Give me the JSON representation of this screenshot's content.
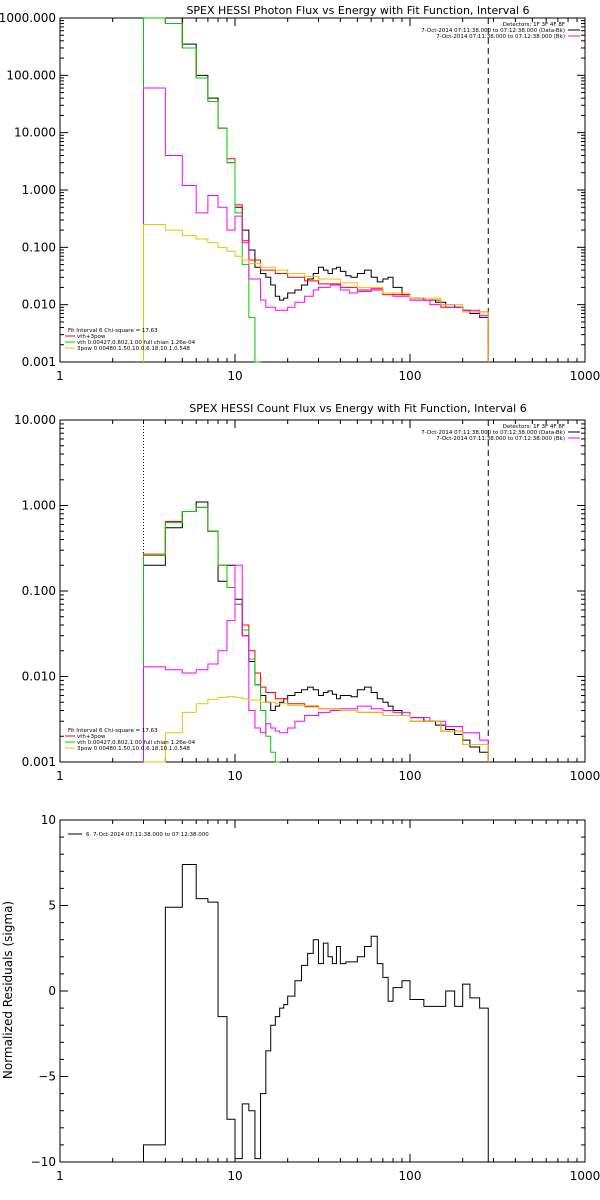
{
  "chart_data": [
    {
      "type": "line",
      "title": "SPEX HESSI Photon Flux vs Energy with Fit Function, Interval 6",
      "xscale": "log",
      "yscale": "log",
      "xlim": [
        1,
        1000
      ],
      "ylim": [
        0.001,
        1000
      ],
      "xticks": [
        "1",
        "10",
        "100",
        "1000"
      ],
      "yticks": [
        "0.001",
        "0.010",
        "0.100",
        "1.000",
        "10.000",
        "100.000",
        "1000.000"
      ],
      "ytick_values": [
        0.001,
        0.01,
        0.1,
        1,
        10,
        100,
        1000
      ],
      "vlines": [
        {
          "x": 3,
          "style": "dotted",
          "color": "#e8a000"
        },
        {
          "x": 280,
          "style": "dashed",
          "color": "#000000"
        }
      ],
      "legend_top": [
        "Detectors: 1F 3F 4F 8F",
        "7-Oct-2014 07:11:38.000 to 07:12:38.000 (Data-Bk)",
        "7-Oct-2014 07:11:38.000 to 07:12:38.000 (Bk)"
      ],
      "legend_top_colors": [
        "",
        "#000000",
        "#ff00ff"
      ],
      "legend_bottom": [
        "Fit Interval 6   Chi-square = 17.63",
        "vth+3pow",
        "vth 0.00427,0.802,1.00   full chian 1.26e-04",
        "3pow 0.00480,1.50,10.0,6.18,10.1,0.548"
      ],
      "legend_bottom_colors": [
        "",
        "#ff0000",
        "#00cc00",
        "#e8c400"
      ],
      "series": [
        {
          "color": "#000000",
          "edges": [
            3,
            4,
            5,
            6,
            7,
            8,
            9,
            10,
            11,
            12,
            13,
            14,
            15,
            16,
            17,
            18,
            19,
            20,
            22,
            24,
            26,
            28,
            30,
            32,
            34,
            36,
            38,
            40,
            43,
            46,
            50,
            55,
            60,
            65,
            70,
            75,
            80,
            90,
            100,
            120,
            140,
            160,
            180,
            200,
            220,
            250,
            280
          ],
          "values": [
            1000,
            1000,
            350,
            100,
            40,
            12,
            3,
            0.5,
            0.2,
            0.09,
            0.045,
            0.035,
            0.03,
            0.022,
            0.014,
            0.012,
            0.013,
            0.016,
            0.018,
            0.022,
            0.028,
            0.035,
            0.045,
            0.04,
            0.035,
            0.042,
            0.045,
            0.038,
            0.032,
            0.03,
            0.035,
            0.04,
            0.03,
            0.025,
            0.028,
            0.03,
            0.02,
            0.015,
            0.013,
            0.012,
            0.011,
            0.01,
            0.009,
            0.008,
            0.007,
            0.006
          ]
        },
        {
          "color": "#ff0000",
          "edges": [
            3,
            4,
            5,
            6,
            7,
            8,
            9,
            10,
            11,
            12,
            14,
            17,
            20,
            25,
            30,
            40,
            50,
            70,
            100,
            150,
            200,
            280
          ],
          "values": [
            1000,
            800,
            300,
            90,
            35,
            12,
            3.5,
            0.55,
            0.13,
            0.06,
            0.04,
            0.035,
            0.03,
            0.026,
            0.023,
            0.02,
            0.018,
            0.015,
            0.012,
            0.009,
            0.0075
          ]
        },
        {
          "color": "#00cc00",
          "edges": [
            3,
            4,
            5,
            6,
            7,
            8,
            9,
            10,
            11,
            12,
            13,
            14
          ],
          "values": [
            1000,
            800,
            300,
            90,
            35,
            12,
            3,
            0.4,
            0.05,
            0.006,
            0.001
          ]
        },
        {
          "color": "#ff00ff",
          "edges": [
            3,
            4,
            5,
            6,
            7,
            8,
            9,
            10,
            11,
            12,
            14,
            15,
            17,
            20,
            22,
            25,
            28,
            30,
            35,
            40,
            45,
            50,
            60,
            70,
            80,
            100,
            130,
            160,
            200,
            250,
            280
          ],
          "values": [
            60,
            4,
            1.2,
            0.4,
            0.8,
            0.5,
            0.2,
            0.35,
            0.12,
            0.028,
            0.012,
            0.009,
            0.008,
            0.009,
            0.011,
            0.014,
            0.018,
            0.02,
            0.022,
            0.018,
            0.016,
            0.017,
            0.019,
            0.016,
            0.014,
            0.012,
            0.01,
            0.009,
            0.008,
            0.0065
          ]
        },
        {
          "color": "#e8c400",
          "edges": [
            3,
            4,
            5,
            6,
            7,
            8,
            9,
            10,
            11,
            12,
            14,
            17,
            20,
            25,
            30,
            40,
            50,
            70,
            100,
            150,
            200,
            280
          ],
          "values": [
            0.25,
            0.2,
            0.16,
            0.14,
            0.12,
            0.1,
            0.085,
            0.07,
            0.06,
            0.052,
            0.045,
            0.04,
            0.035,
            0.031,
            0.028,
            0.024,
            0.02,
            0.016,
            0.013,
            0.01,
            0.0075
          ]
        }
      ]
    },
    {
      "type": "line",
      "title": "SPEX HESSI Count Flux vs Energy with Fit Function, Interval 6",
      "xscale": "log",
      "yscale": "log",
      "xlim": [
        1,
        1000
      ],
      "ylim": [
        0.001,
        10
      ],
      "xticks": [
        "1",
        "10",
        "100",
        "1000"
      ],
      "yticks": [
        "0.001",
        "0.010",
        "0.100",
        "1.000",
        "10.000"
      ],
      "ytick_values": [
        0.001,
        0.01,
        0.1,
        1,
        10
      ],
      "vlines": [
        {
          "x": 3,
          "style": "dotted",
          "color": "#000000"
        },
        {
          "x": 280,
          "style": "dashed",
          "color": "#000000"
        }
      ],
      "legend_top": [
        "Detectors: 1F 3F 4F 8F",
        "7-Oct-2014 07:11:38.000 to 07:12:38.000 (Data-Bk)",
        "7-Oct-2014 07:11:38.000 to 07:12:38.000 (Bk)"
      ],
      "legend_top_colors": [
        "",
        "#000000",
        "#ff00ff"
      ],
      "legend_bottom": [
        "Fit Interval 6   Chi-square = 17.63",
        "vth+3pow",
        "vth 0.00427,0.802,1.00   full chian 1.26e-04",
        "3pow 0.00480,1.50,10.0,6.18,10.1,0.548"
      ],
      "legend_bottom_colors": [
        "",
        "#ff0000",
        "#00cc00",
        "#e8c400"
      ],
      "series": [
        {
          "color": "#000000",
          "edges": [
            3,
            4,
            5,
            6,
            7,
            8,
            9,
            10,
            11,
            12,
            13,
            14,
            15,
            16,
            17,
            18,
            19,
            20,
            22,
            24,
            26,
            28,
            30,
            32,
            34,
            36,
            38,
            40,
            43,
            46,
            50,
            55,
            60,
            65,
            70,
            75,
            80,
            90,
            100,
            120,
            140,
            160,
            180,
            200,
            220,
            250,
            280
          ],
          "values": [
            0.2,
            0.55,
            0.85,
            1.1,
            0.5,
            0.13,
            0.2,
            0.08,
            0.03,
            0.015,
            0.008,
            0.006,
            0.005,
            0.004,
            0.0045,
            0.005,
            0.0055,
            0.006,
            0.0065,
            0.007,
            0.0075,
            0.007,
            0.006,
            0.0065,
            0.0068,
            0.0062,
            0.0055,
            0.006,
            0.006,
            0.0058,
            0.007,
            0.0075,
            0.0065,
            0.0055,
            0.005,
            0.0045,
            0.004,
            0.0035,
            0.0033,
            0.003,
            0.0027,
            0.0024,
            0.0021,
            0.0018,
            0.0015,
            0.0013
          ]
        },
        {
          "color": "#ff0000",
          "edges": [
            3,
            4,
            5,
            6,
            7,
            8,
            9,
            10,
            11,
            12,
            13,
            14,
            15,
            17,
            20,
            25,
            30,
            40,
            50,
            70,
            100,
            150,
            200,
            280
          ],
          "values": [
            0.27,
            0.65,
            0.85,
            0.95,
            0.5,
            0.2,
            0.11,
            0.07,
            0.04,
            0.02,
            0.011,
            0.0075,
            0.0065,
            0.0055,
            0.0048,
            0.0045,
            0.0042,
            0.004,
            0.0038,
            0.0035,
            0.003,
            0.0023,
            0.0016
          ]
        },
        {
          "color": "#00cc00",
          "edges": [
            3,
            4,
            5,
            6,
            7,
            8,
            9,
            10,
            11,
            12,
            13,
            14,
            15,
            16,
            17,
            18
          ],
          "values": [
            0.26,
            0.63,
            0.85,
            0.95,
            0.5,
            0.2,
            0.11,
            0.07,
            0.035,
            0.016,
            0.008,
            0.004,
            0.002,
            0.0013,
            0.001
          ]
        },
        {
          "color": "#ff00ff",
          "edges": [
            3,
            4,
            5,
            6,
            7,
            8,
            9,
            10,
            11,
            12,
            13,
            14,
            15,
            16,
            17,
            18,
            20,
            22,
            25,
            30,
            35,
            40,
            50,
            60,
            70,
            80,
            100,
            130,
            160,
            200,
            250,
            280
          ],
          "values": [
            0.013,
            0.012,
            0.011,
            0.012,
            0.014,
            0.02,
            0.045,
            0.2,
            0.03,
            0.004,
            0.0025,
            0.0022,
            0.0028,
            0.0025,
            0.0023,
            0.0022,
            0.0025,
            0.003,
            0.0035,
            0.0038,
            0.004,
            0.0042,
            0.0045,
            0.0042,
            0.004,
            0.0038,
            0.0033,
            0.003,
            0.0026,
            0.0022,
            0.0018
          ]
        },
        {
          "color": "#e8c400",
          "edges": [
            3,
            4,
            5,
            6,
            7,
            8,
            9,
            10,
            11,
            12,
            14,
            17,
            20,
            25,
            30,
            40,
            50,
            70,
            100,
            150,
            200,
            280
          ],
          "values": [
            0.001,
            0.0022,
            0.0038,
            0.0048,
            0.0054,
            0.0057,
            0.0058,
            0.0057,
            0.0055,
            0.0053,
            0.005,
            0.0048,
            0.0046,
            0.0044,
            0.0042,
            0.004,
            0.0038,
            0.0035,
            0.003,
            0.0023,
            0.0016
          ]
        }
      ]
    },
    {
      "type": "line",
      "title": "",
      "ylabel": "Normalized Residuals (sigma)",
      "xscale": "log",
      "yscale": "linear",
      "xlim": [
        1,
        1000
      ],
      "ylim": [
        -10,
        10
      ],
      "xticks": [
        "1",
        "10",
        "100",
        "1000"
      ],
      "yticks": [
        "10",
        "5",
        "0",
        "−5",
        "−10"
      ],
      "ytick_values": [
        10,
        5,
        0,
        -5,
        -10
      ],
      "legend_top": [
        "6. 7-Oct-2014 07:11:38.000 to 07:12:38.000"
      ],
      "legend_top_colors": [
        "#000000"
      ],
      "series": [
        {
          "color": "#000000",
          "edges": [
            3,
            4,
            5,
            6,
            7,
            8,
            9,
            10,
            11,
            12,
            13,
            14,
            15,
            16,
            17,
            18,
            19,
            20,
            22,
            24,
            26,
            28,
            30,
            32,
            34,
            36,
            38,
            40,
            43,
            46,
            50,
            55,
            60,
            65,
            70,
            75,
            80,
            90,
            100,
            120,
            140,
            160,
            180,
            200,
            220,
            250,
            280
          ],
          "values": [
            -9,
            4.9,
            7.4,
            5.4,
            5.2,
            -1.5,
            -7.5,
            -9.8,
            -6.6,
            -7,
            -9.8,
            -6,
            -3.5,
            -2,
            -1.5,
            -1,
            -0.8,
            -0.3,
            0.6,
            1.5,
            2.2,
            3.0,
            1.6,
            2.8,
            2.0,
            1.6,
            2.6,
            1.6,
            1.7,
            1.7,
            2.0,
            2.6,
            3.2,
            1.6,
            0.8,
            -0.6,
            0.2,
            0.6,
            -0.5,
            -0.9,
            -0.9,
            0.0,
            -0.9,
            0.4,
            -0.4,
            -1.0
          ]
        }
      ]
    }
  ]
}
